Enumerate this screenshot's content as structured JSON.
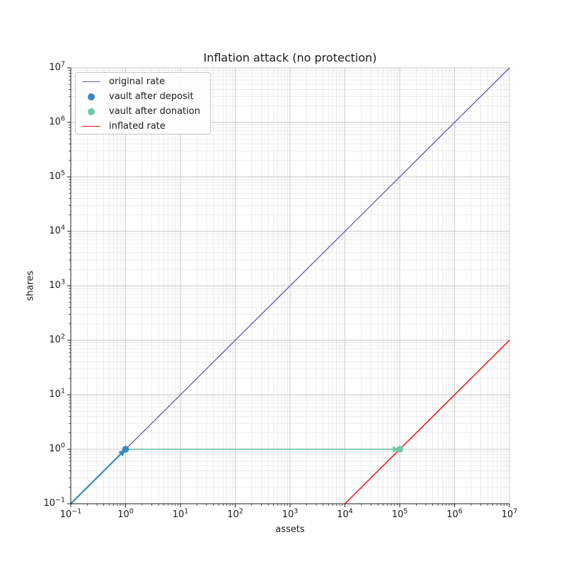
{
  "chart_data": {
    "type": "line",
    "title": "Inflation attack (no protection)",
    "xlabel": "assets",
    "ylabel": "shares",
    "xscale": "log",
    "yscale": "log",
    "x_tick_exponents": [
      -1,
      0,
      1,
      2,
      3,
      4,
      5,
      6,
      7
    ],
    "y_tick_exponents": [
      -1,
      0,
      1,
      2,
      3,
      4,
      5,
      6,
      7
    ],
    "grid": "both",
    "legend_position": "upper left",
    "axis_color": "#1a1a1a",
    "grid_major_color": "#c6c6c6",
    "grid_minor_color": "#e3e3e3",
    "series": [
      {
        "name": "original rate",
        "kind": "line",
        "color": "#5e56b8",
        "linewidth": 1.3,
        "points": [
          [
            0.1,
            0.1
          ],
          [
            10000000,
            10000000
          ]
        ]
      },
      {
        "name": "vault after deposit",
        "kind": "scatter",
        "color": "#3789bd",
        "marker_radius": 4.8,
        "points": [
          [
            1,
            1
          ]
        ]
      },
      {
        "name": "vault after donation",
        "kind": "scatter",
        "color": "#70c9a4",
        "marker_radius": 4.8,
        "points": [
          [
            100000,
            1
          ]
        ]
      },
      {
        "name": "inflated rate",
        "kind": "line",
        "color": "#f01216",
        "linewidth": 1.5,
        "points": [
          [
            10000,
            0.1
          ],
          [
            10000000,
            100
          ]
        ]
      }
    ],
    "arrows": [
      {
        "name": "deposit-arrow",
        "color": "#3789bd",
        "from": [
          0.1,
          0.1
        ],
        "to": [
          1,
          1
        ],
        "linewidth": 2.2
      },
      {
        "name": "donation-arrow",
        "color": "#70c9a4",
        "from": [
          1,
          1
        ],
        "to": [
          100000,
          1
        ],
        "linewidth": 1.8
      }
    ]
  }
}
